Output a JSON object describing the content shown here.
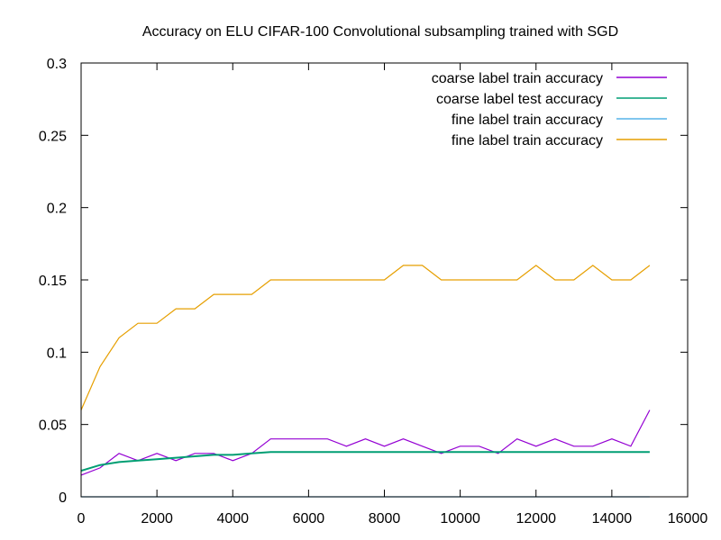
{
  "chart_data": {
    "type": "line",
    "title": "Accuracy on ELU CIFAR-100 Convolutional subsampling trained with SGD",
    "xlabel": "",
    "ylabel": "",
    "xlim": [
      0,
      16000
    ],
    "ylim": [
      0,
      0.3
    ],
    "x_ticks": [
      0,
      2000,
      4000,
      6000,
      8000,
      10000,
      12000,
      14000,
      16000
    ],
    "y_ticks": [
      0,
      0.05,
      0.1,
      0.15,
      0.2,
      0.25,
      0.3
    ],
    "x_tick_labels": [
      "0",
      "2000",
      "4000",
      "6000",
      "8000",
      "10000",
      "12000",
      "14000",
      "16000"
    ],
    "y_tick_labels": [
      "0",
      "0.05",
      "0.1",
      "0.15",
      "0.2",
      "0.25",
      "0.3"
    ],
    "grid": false,
    "legend_position": "top-right",
    "series": [
      {
        "name": "coarse label train accuracy",
        "color": "#9400d3",
        "x": [
          0,
          500,
          1000,
          1500,
          2000,
          2500,
          3000,
          3500,
          4000,
          4500,
          5000,
          5500,
          6000,
          6500,
          7000,
          7500,
          8000,
          8500,
          9000,
          9500,
          10000,
          10500,
          11000,
          11500,
          12000,
          12500,
          13000,
          13500,
          14000,
          14500,
          15000
        ],
        "y": [
          0.015,
          0.02,
          0.03,
          0.025,
          0.03,
          0.025,
          0.03,
          0.03,
          0.025,
          0.03,
          0.04,
          0.04,
          0.04,
          0.04,
          0.035,
          0.04,
          0.035,
          0.04,
          0.035,
          0.03,
          0.035,
          0.035,
          0.03,
          0.04,
          0.035,
          0.04,
          0.035,
          0.035,
          0.04,
          0.035,
          0.06
        ]
      },
      {
        "name": "coarse label test accuracy",
        "color": "#009e73",
        "x": [
          0,
          500,
          1000,
          1500,
          2000,
          2500,
          3000,
          3500,
          4000,
          4500,
          5000,
          5500,
          6000,
          6500,
          7000,
          7500,
          8000,
          8500,
          9000,
          9500,
          10000,
          10500,
          11000,
          11500,
          12000,
          12500,
          13000,
          13500,
          14000,
          14500,
          15000
        ],
        "y": [
          0.018,
          0.022,
          0.024,
          0.025,
          0.026,
          0.027,
          0.028,
          0.029,
          0.029,
          0.03,
          0.031,
          0.031,
          0.031,
          0.031,
          0.031,
          0.031,
          0.031,
          0.031,
          0.031,
          0.031,
          0.031,
          0.031,
          0.031,
          0.031,
          0.031,
          0.031,
          0.031,
          0.031,
          0.031,
          0.031,
          0.031
        ]
      },
      {
        "name": "fine label train accuracy",
        "color": "#56b4e9",
        "x": [
          0,
          15000
        ],
        "y": [
          0,
          0
        ]
      },
      {
        "name": "fine label train accuracy",
        "color": "#e69f00",
        "x": [
          0,
          500,
          1000,
          1500,
          2000,
          2500,
          3000,
          3500,
          4000,
          4500,
          5000,
          5500,
          6000,
          6500,
          7000,
          7500,
          8000,
          8500,
          9000,
          9500,
          10000,
          10500,
          11000,
          11500,
          12000,
          12500,
          13000,
          13500,
          14000,
          14500,
          15000
        ],
        "y": [
          0.06,
          0.09,
          0.11,
          0.12,
          0.12,
          0.13,
          0.13,
          0.14,
          0.14,
          0.14,
          0.15,
          0.15,
          0.15,
          0.15,
          0.15,
          0.15,
          0.15,
          0.16,
          0.16,
          0.15,
          0.15,
          0.15,
          0.15,
          0.15,
          0.16,
          0.15,
          0.15,
          0.16,
          0.15,
          0.15,
          0.16
        ]
      }
    ]
  }
}
